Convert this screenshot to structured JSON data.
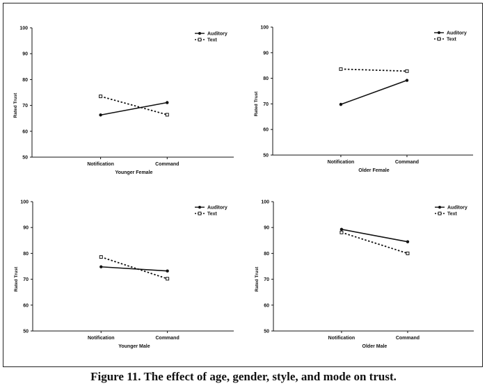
{
  "caption": "Figure 11.  The effect of age, gender, style, and mode on trust.",
  "colors": {
    "line": "#111111",
    "frame": "#222222",
    "background": "#ffffff"
  },
  "chart_data": [
    {
      "type": "line",
      "xlabel": "Younger Female",
      "ylabel": "Rated Trust",
      "categories": [
        "Notification",
        "Command"
      ],
      "ylim": [
        50,
        100
      ],
      "yticks": [
        50,
        60,
        70,
        80,
        90,
        100
      ],
      "grid": false,
      "legend_position": "top-right",
      "series": [
        {
          "name": "Auditory",
          "values": [
            66.3,
            71.1
          ],
          "line_style": "solid",
          "marker": "filled-circle"
        },
        {
          "name": "Text",
          "values": [
            73.5,
            66.4
          ],
          "line_style": "dashed",
          "marker": "open-square"
        }
      ]
    },
    {
      "type": "line",
      "xlabel": "Older Female",
      "ylabel": "Rated Trust",
      "categories": [
        "Notification",
        "Command"
      ],
      "ylim": [
        50,
        100
      ],
      "yticks": [
        50,
        60,
        70,
        80,
        90,
        100
      ],
      "grid": false,
      "legend_position": "top-right",
      "series": [
        {
          "name": "Auditory",
          "values": [
            69.8,
            79.2
          ],
          "line_style": "solid",
          "marker": "filled-circle"
        },
        {
          "name": "Text",
          "values": [
            83.6,
            82.8
          ],
          "line_style": "dashed",
          "marker": "open-square"
        }
      ]
    },
    {
      "type": "line",
      "xlabel": "Younger Male",
      "ylabel": "Rated Trust",
      "categories": [
        "Notification",
        "Command"
      ],
      "ylim": [
        50,
        100
      ],
      "yticks": [
        50,
        60,
        70,
        80,
        90,
        100
      ],
      "grid": false,
      "legend_position": "top-right",
      "series": [
        {
          "name": "Auditory",
          "values": [
            74.8,
            73.2
          ],
          "line_style": "solid",
          "marker": "filled-circle"
        },
        {
          "name": "Text",
          "values": [
            78.6,
            70.2
          ],
          "line_style": "dashed",
          "marker": "open-square"
        }
      ]
    },
    {
      "type": "line",
      "xlabel": "Older Male",
      "ylabel": "Rated Trust",
      "categories": [
        "Notification",
        "Command"
      ],
      "ylim": [
        50,
        100
      ],
      "yticks": [
        50,
        60,
        70,
        80,
        90,
        100
      ],
      "grid": false,
      "legend_position": "top-right",
      "series": [
        {
          "name": "Auditory",
          "values": [
            89.3,
            84.5
          ],
          "line_style": "solid",
          "marker": "filled-circle"
        },
        {
          "name": "Text",
          "values": [
            88.1,
            80.0
          ],
          "line_style": "dashed",
          "marker": "open-square"
        }
      ]
    }
  ]
}
